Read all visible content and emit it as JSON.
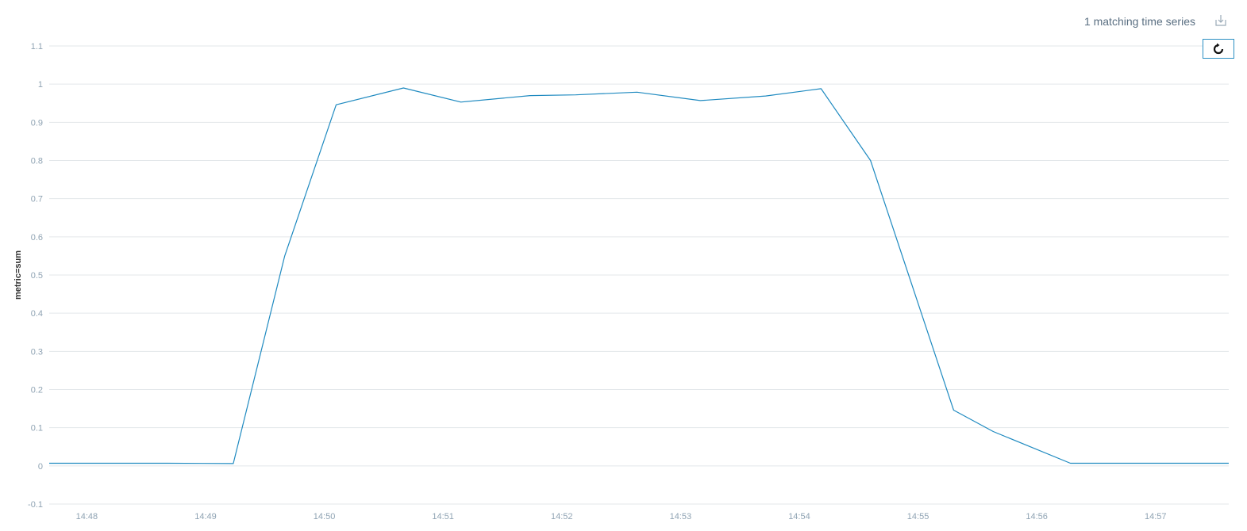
{
  "header": {
    "status_text": "1 matching time series",
    "download_icon": "download-icon",
    "refresh_icon": "refresh-icon"
  },
  "colors": {
    "line": "#1f8ac0",
    "grid": "#e3e7ea",
    "tick": "#8fa3b3",
    "button_border": "#2b8fc3"
  },
  "chart_data": {
    "type": "line",
    "title": "",
    "xlabel": "",
    "ylabel": "metric=sum",
    "grid": true,
    "ylim": [
      -0.1,
      1.1
    ],
    "yticks": [
      "-0.1",
      "0",
      "0.1",
      "0.2",
      "0.3",
      "0.4",
      "0.5",
      "0.6",
      "0.7",
      "0.8",
      "0.9",
      "1",
      "1.1"
    ],
    "xticks": [
      "14:48",
      "14:49",
      "14:50",
      "14:51",
      "14:52",
      "14:53",
      "14:54",
      "14:55",
      "14:56",
      "14:57"
    ],
    "xlim": [
      "14:47:41",
      "14:57:37"
    ],
    "series": [
      {
        "x": [
          "14:47:41",
          "14:48:41",
          "14:49:14",
          "14:49:40",
          "14:50:06",
          "14:50:40",
          "14:51:09",
          "14:51:44",
          "14:52:07",
          "14:52:38",
          "14:53:10",
          "14:53:43",
          "14:54:11",
          "14:54:36",
          "14:55:18",
          "14:55:38",
          "14:56:17",
          "14:57:37"
        ],
        "y": [
          0.007,
          0.007,
          0.006,
          0.55,
          0.946,
          0.99,
          0.953,
          0.97,
          0.972,
          0.979,
          0.957,
          0.969,
          0.988,
          0.8,
          0.146,
          0.09,
          0.007,
          0.007
        ]
      }
    ]
  }
}
